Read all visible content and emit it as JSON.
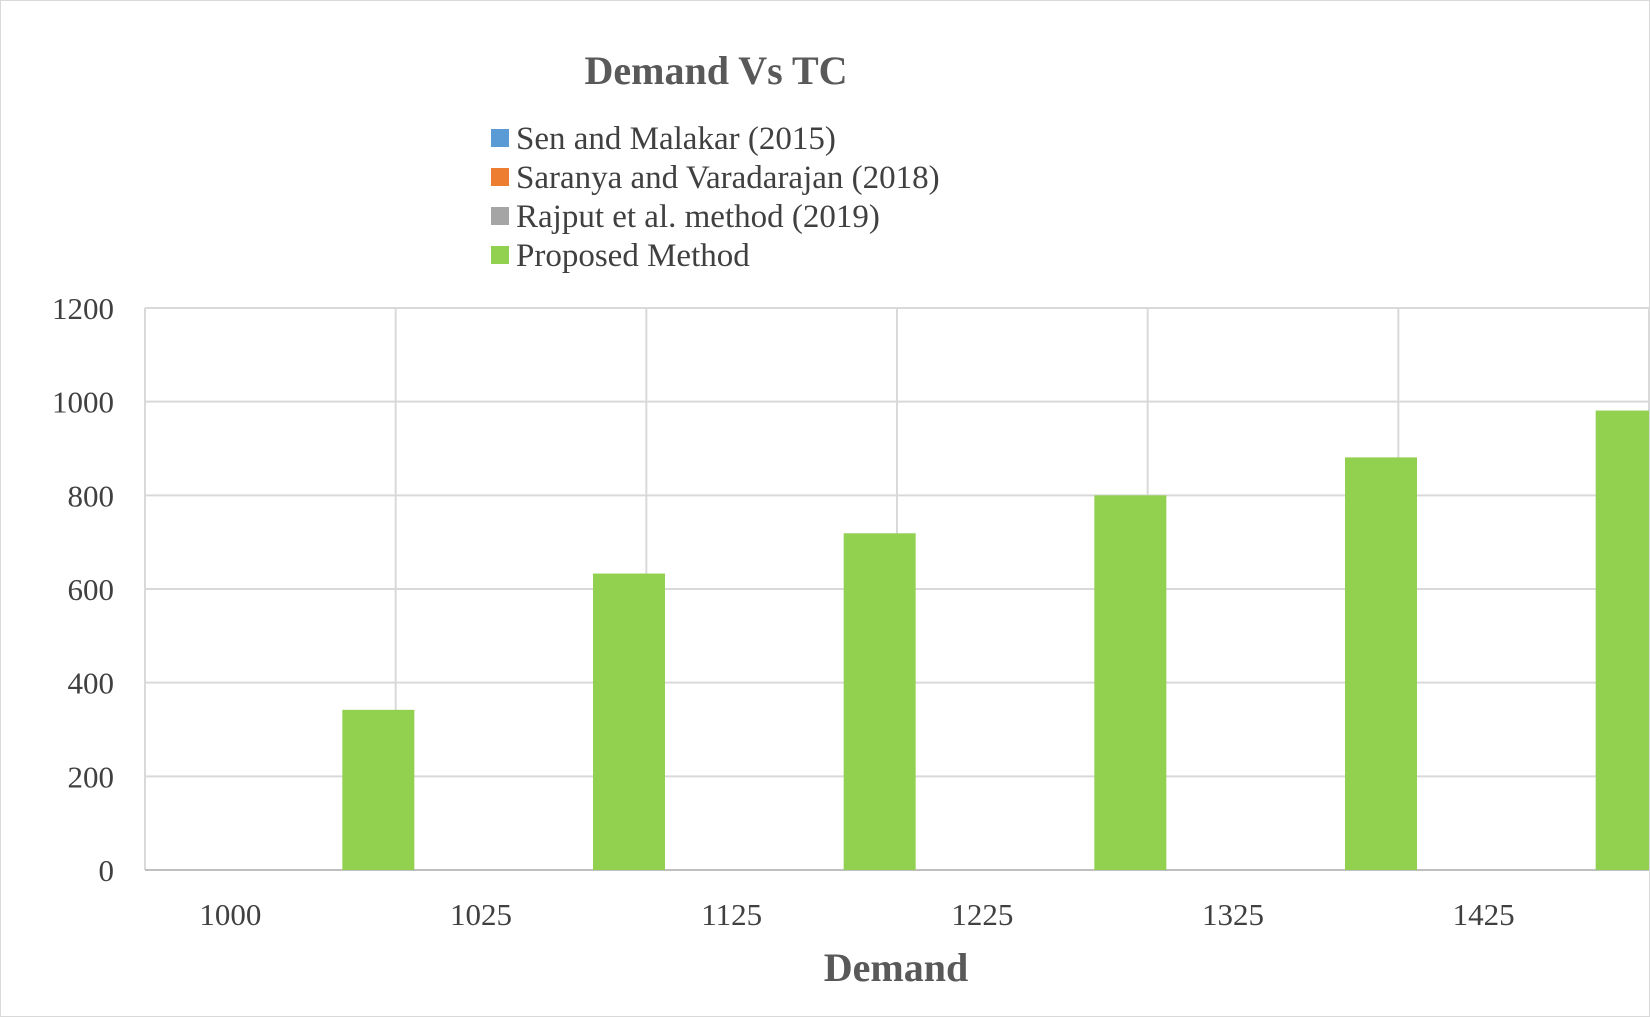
{
  "chart_data": {
    "type": "bar",
    "title": "Demand Vs TC",
    "xlabel": "Demand",
    "ylabel": "",
    "categories": [
      "1000",
      "1025",
      "1125",
      "1225",
      "1325",
      "1425"
    ],
    "ylim": [
      0,
      1200
    ],
    "yticks": [
      0,
      200,
      400,
      600,
      800,
      1000,
      1200
    ],
    "grid": true,
    "legend_position": "top",
    "series": [
      {
        "name": "Sen and Malakar (2015)",
        "color": "#5b9bd5",
        "values": [
          0,
          0,
          0,
          0,
          0,
          0
        ]
      },
      {
        "name": "Saranya and Varadarajan (2018)",
        "color": "#ed7d31",
        "values": [
          0,
          0,
          0,
          0,
          0,
          0
        ]
      },
      {
        "name": "Rajput et al. method (2019)",
        "color": "#a5a5a5",
        "values": [
          0,
          0,
          0,
          0,
          0,
          0
        ]
      },
      {
        "name": "Proposed Method",
        "color": "#92d050",
        "values": [
          342,
          633,
          719,
          800,
          881,
          981
        ]
      }
    ]
  }
}
